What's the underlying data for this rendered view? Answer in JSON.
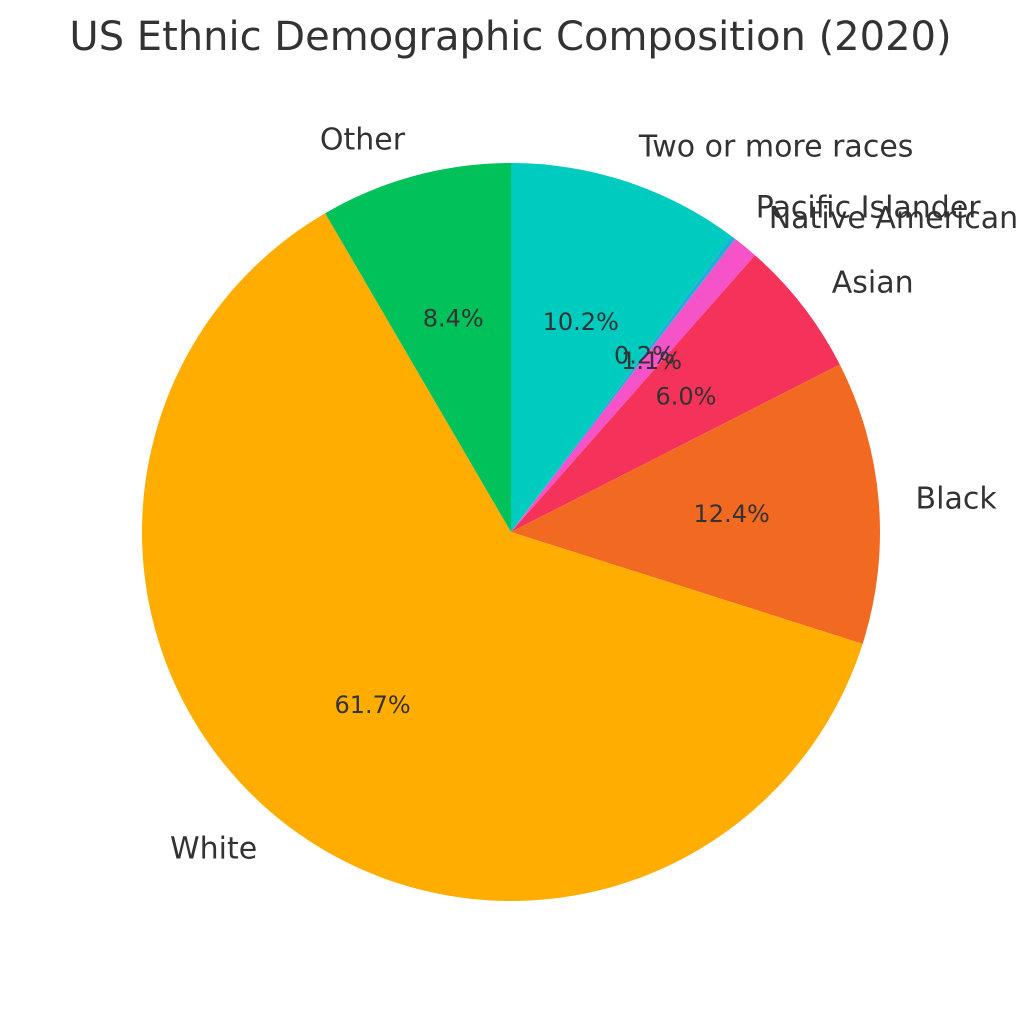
{
  "chart_data": {
    "type": "pie",
    "title": "US Ethnic Demographic Composition (2020)",
    "start_angle_deg": 90,
    "direction": "clockwise",
    "slices": [
      {
        "label": "Two or more races",
        "value": 10.2,
        "pct_text": "10.2%",
        "color": "#00CBBF"
      },
      {
        "label": "Pacific Islander",
        "value": 0.2,
        "pct_text": "0.2%",
        "color": "#1EAEDB"
      },
      {
        "label": "Native American",
        "value": 1.1,
        "pct_text": "1.1%",
        "color": "#F653C8"
      },
      {
        "label": "Asian",
        "value": 6.0,
        "pct_text": "6.0%",
        "color": "#F53259"
      },
      {
        "label": "Black",
        "value": 12.4,
        "pct_text": "12.4%",
        "color": "#F26922"
      },
      {
        "label": "White",
        "value": 61.7,
        "pct_text": "61.7%",
        "color": "#FFAD00"
      },
      {
        "label": "Other",
        "value": 8.4,
        "pct_text": "8.4%",
        "color": "#00C15A"
      }
    ]
  }
}
